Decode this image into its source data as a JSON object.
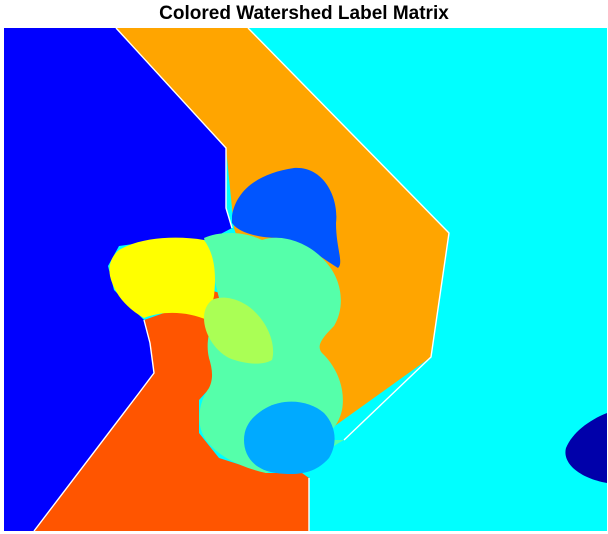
{
  "figure": {
    "title": "Colored Watershed Label Matrix"
  },
  "colors": {
    "background": "#ffffff",
    "boundary": "#ffffff",
    "region_blue": "#0000ff",
    "region_orange": "#ffa500",
    "region_cyan": "#00ffff",
    "region_royal_blue": "#0055ff",
    "region_yellow": "#ffff00",
    "region_aquamarine": "#55ffaa",
    "region_lime": "#aaff55",
    "region_red_orange": "#ff5500",
    "region_azure": "#00aaff",
    "region_navy": "#0000aa"
  }
}
